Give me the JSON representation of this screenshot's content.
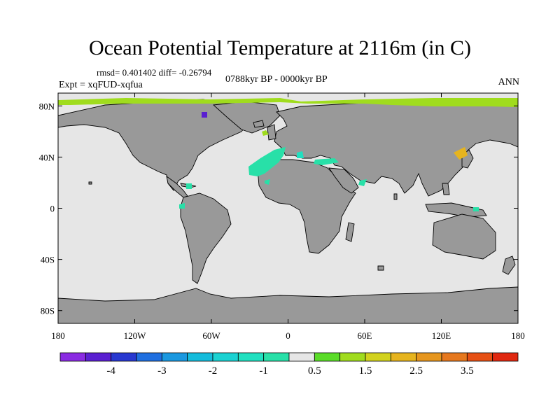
{
  "chart_data": {
    "type": "heatmap",
    "title": "Ocean Potential Temperature at 2116m (in C)",
    "stats_text": "rmsd= 0.401402 diff= -0.26794",
    "left_label": "Expt = xqFUD-xqfua",
    "center_label": "0788kyr BP - 0000kyr BP",
    "right_label": "ANN",
    "x_ticks": [
      {
        "value": -180,
        "label": "180"
      },
      {
        "value": -120,
        "label": "120W"
      },
      {
        "value": -60,
        "label": "60W"
      },
      {
        "value": 0,
        "label": "0"
      },
      {
        "value": 60,
        "label": "60E"
      },
      {
        "value": 120,
        "label": "120E"
      },
      {
        "value": 180,
        "label": "180"
      }
    ],
    "y_ticks": [
      {
        "value": 80,
        "label": "80N"
      },
      {
        "value": 40,
        "label": "40N"
      },
      {
        "value": 0,
        "label": "0"
      },
      {
        "value": -40,
        "label": "40S"
      },
      {
        "value": -80,
        "label": "80S"
      }
    ],
    "xlim": [
      -180,
      180
    ],
    "ylim": [
      -90,
      90
    ],
    "colorbar": {
      "levels": [
        -4.5,
        -4,
        -3.5,
        -3,
        -2.5,
        -2,
        -1.5,
        -1,
        -0.5,
        0.5,
        1,
        1.5,
        2,
        2.5,
        3,
        3.5,
        4
      ],
      "colors": [
        "#8a2be2",
        "#5a1fd1",
        "#2838d0",
        "#1f6fe0",
        "#1a98e0",
        "#14bcdc",
        "#1ad2d2",
        "#20e0c0",
        "#28e0a8",
        "#e6e6e6",
        "#5adc28",
        "#a0dc1e",
        "#d2d21e",
        "#e6b41e",
        "#e6961e",
        "#e6781e",
        "#e65014",
        "#e02810"
      ],
      "tick_labels": [
        {
          "level": -4,
          "label": "-4"
        },
        {
          "level": -3,
          "label": "-3"
        },
        {
          "level": -2,
          "label": "-2"
        },
        {
          "level": -1,
          "label": "-1"
        },
        {
          "level": 0.5,
          "label": "0.5"
        },
        {
          "level": 1.5,
          "label": "1.5"
        },
        {
          "level": 2.5,
          "label": "2.5"
        },
        {
          "level": 3.5,
          "label": "3.5"
        }
      ]
    },
    "colors": {
      "land": "#999999",
      "ocean_neutral": "#e6e6e6",
      "coast": "#000000"
    }
  }
}
